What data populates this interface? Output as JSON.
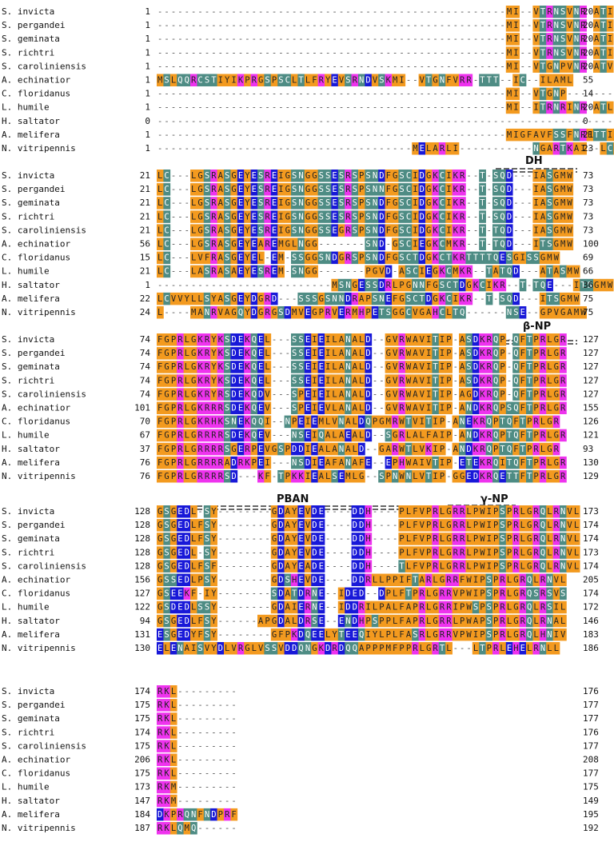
{
  "colors": {
    "orange": "#F39A1F",
    "teal": "#4E8C84",
    "magenta": "#EE33EE",
    "blue": "#1818D8",
    "text_on_dark": "#ffffff",
    "text_on_light": "#222222",
    "gap": "#555555"
  },
  "color_scheme": {
    "A": "orange",
    "G": "orange",
    "V": "orange",
    "L": "orange",
    "I": "orange",
    "M": "orange",
    "F": "orange",
    "W": "orange",
    "P": "orange",
    "Y": "orange",
    "S": "teal",
    "T": "teal",
    "C": "teal",
    "N": "teal",
    "Q": "teal",
    "K": "magenta",
    "R": "magenta",
    "H": "magenta",
    "D": "blue",
    "E": "blue"
  },
  "blocks": [
    {
      "rows": [
        {
          "species": "S. invicta",
          "start": "1",
          "seq": "----------------------------------------------------MI--VTRNSVNR-ATI--VC--IMAML",
          "end": "20"
        },
        {
          "species": "S. pergandei",
          "start": "1",
          "seq": "----------------------------------------------------MI--VTRNSVNR-ATI--VC--IMAML",
          "end": "20"
        },
        {
          "species": "S. geminata",
          "start": "1",
          "seq": "----------------------------------------------------MI--VTRNSVNR-ATI--VC--IMAML",
          "end": "20"
        },
        {
          "species": "S. richtri",
          "start": "1",
          "seq": "----------------------------------------------------MI--VTRNSVNR-ATI--VC--IMAML",
          "end": "20"
        },
        {
          "species": "S. caroliniensis",
          "start": "1",
          "seq": "----------------------------------------------------MI--VTGNPVNR-ATV--VC--IMALL",
          "end": "20"
        },
        {
          "species": "A. echinatior",
          "start": "1",
          "seq": "MSLQQRCSTIYIKPRGSPSCLTLFRYEVSRNDVSKMI--VTGNFVRR-TTT--IC--ILAML",
          "end": "55"
        },
        {
          "species": "C. floridanus",
          "start": "1",
          "seq": "----------------------------------------------------MI--VTGNP------------VC--AIALL",
          "end": "14"
        },
        {
          "species": "L. humile",
          "start": "1",
          "seq": "----------------------------------------------------MI--ITRNRINR-ATL--IC--VLASW",
          "end": "20"
        },
        {
          "species": "H. saltator",
          "start": "0",
          "seq": "--------------------------------------------------------------------------------",
          "end": "0"
        },
        {
          "species": "A. melifera",
          "start": "1",
          "seq": "----------------------------------------------------MIGFAVFSSFNRFTTIFVC--V-----L",
          "end": "21"
        },
        {
          "species": "N. vitripennis",
          "start": "1",
          "seq": "--------------------------------------MELARLI-----------NGARTKAI--LCALLVIV",
          "end": "23"
        }
      ]
    },
    {
      "region": {
        "label": "DH"
      },
      "rows": [
        {
          "species": "S. invicta",
          "start": "21",
          "seq": "LC---LGSRASGEYESREIGSNGGSSESRSPSNDFGSCIDGKCIKR--T-SQD---IASGMW",
          "end": "73"
        },
        {
          "species": "S. pergandei",
          "start": "21",
          "seq": "LC---LGSRASGEYESREIGSNGGSSESRSPSNNFGSCIDGKCIKR--T-SQD---IASGMW",
          "end": "73"
        },
        {
          "species": "S. geminata",
          "start": "21",
          "seq": "LC---LGSRASGEYESREIGSNGGSSESRSPSNDFGSCIDGKCIKR--T-SQD---IASGMW",
          "end": "73"
        },
        {
          "species": "S. richtri",
          "start": "21",
          "seq": "LC---LGSRASGEYESREIGSNGGSSESRSPSNDFGSCIDGKCIKR--T-SQD---IASGMW",
          "end": "73"
        },
        {
          "species": "S. caroliniensis",
          "start": "21",
          "seq": "LC---LGSRASGEYESREIGSNGGSSEGRSPSNDFGSCIDGKCIKR--T-TQD---IASGMW",
          "end": "73"
        },
        {
          "species": "A. echinatior",
          "start": "56",
          "seq": "LC---LGSRASGEYEAREMGLNGG-------SND-GSCIEGKCMKR--T-TQD---ITSGMW",
          "end": "100"
        },
        {
          "species": "C. floridanus",
          "start": "15",
          "seq": "LC---LVFRASGEYEL-EM-SSGGSNDGRSPSNDFGSCTDGKCTKRTTTTQESGISSGMW",
          "end": "69"
        },
        {
          "species": "L. humile",
          "start": "21",
          "seq": "LC---LASRASAEYESREM-SNGG-------PGVD-ASCIEGKCMKR--TATQD---ATASMW",
          "end": "66"
        },
        {
          "species": "H. saltator",
          "start": "1",
          "seq": "--------------------------MSNGESSDRLPGNNFGSCTDGKCIKR--T-TQE---ITSGMW",
          "end": "36"
        },
        {
          "species": "A. melifera",
          "start": "22",
          "seq": "LCVVYLLSYASGEYDGRD---SSSGSNNDRAPSNEFGSCTDGKCIKR--T-SQD---ITSGMW",
          "end": "75"
        },
        {
          "species": "N. vitripennis",
          "start": "24",
          "seq": "L----MANRVAGQYDGRGSDMVEGPRVERMHPETSGGCVGAHCLTQ------NSE--GPVGAMW",
          "end": "75"
        }
      ]
    },
    {
      "region": {
        "label": "β-NP"
      },
      "rows": [
        {
          "species": "S. invicta",
          "start": "74",
          "seq": "FGPRLGKRYKSDEKQEL---SSEIEILANALD--GVRWAVITIP-ASDKRQP-QFTPRLGR",
          "end": "127"
        },
        {
          "species": "S. pergandei",
          "start": "74",
          "seq": "FGPRLGKRYKSDEKQEL---SSEIEILANALD--GVRWAVITIP-ASDKRQP-QFTPRLGR",
          "end": "127"
        },
        {
          "species": "S. geminata",
          "start": "74",
          "seq": "FGPRLGKRYKSDEKQEL---SSEIEILANALD--GVRWAVITIP-ASDKRQP-QFTPRLGR",
          "end": "127"
        },
        {
          "species": "S. richtri",
          "start": "74",
          "seq": "FGPRLGKRYKSDEKQEL---SSEIEILANALD--GVRWAVITIP-ASDKRQP-QFTPRLGR",
          "end": "127"
        },
        {
          "species": "S. caroliniensis",
          "start": "74",
          "seq": "FGPRLGKRYRSDEKQDV---SPEIEILANALD--GVRWAVITIP-AGDKRQP-QFTPRLGR",
          "end": "127"
        },
        {
          "species": "A. echinatior",
          "start": "101",
          "seq": "FGPRLGKRRRSDEKQEV---SPEIEVLANALD--GVRWAVITIP-ANDKRQPSQFTPRLGR",
          "end": "155"
        },
        {
          "species": "C. floridanus",
          "start": "70",
          "seq": "FGPRLGKRHKSNEKQQI--NPEIEMLVNALDQPGMRWTVITIP-ANEKRQPTQFTPRLGR",
          "end": "126"
        },
        {
          "species": "L. humile",
          "start": "67",
          "seq": "FGPRLGRRRRSDEKQEV---NSEIQALAEALD--SGRLALFAIP-ANDKRQPTQFTPRLGR",
          "end": "121"
        },
        {
          "species": "H. saltator",
          "start": "37",
          "seq": "FGPRLGRRRRSGERPEVGSPDDIEALANALD--GARWTLVKIP-ANDKRQPTQFTPRLGR",
          "end": "93"
        },
        {
          "species": "A. melifera",
          "start": "76",
          "seq": "FGPRLGRRRRADRKPEI---NSDIEAFANAFE--EPHWAIVTIP-ETEKRQITQFTPRLGR",
          "end": "130"
        },
        {
          "species": "N. vitripennis",
          "start": "76",
          "seq": "FGPRLGRRRRSD---KF-TPKKIEALSEMLG--SPNWNLVTIP-GGEDKRQETTFTPRLGR",
          "end": "129"
        }
      ]
    },
    {
      "region": {
        "label_a": "PBAN",
        "label_b": "γ-NP"
      },
      "rows": [
        {
          "species": "S. invicta",
          "start": "128",
          "seq": "GSGEDL-SY--------GDAYEVDE----DDH----PLFVPRLGRRLPWIPSPRLGRQLRNVL",
          "end": "173"
        },
        {
          "species": "S. pergandei",
          "start": "128",
          "seq": "GSGEDLFSY--------GDAYEVDE----DDH----PLFVPRLGRRLPWIPSPRLGRQLRNVL",
          "end": "174"
        },
        {
          "species": "S. geminata",
          "start": "128",
          "seq": "GSGEDLFSY--------GDAYEVDE----DDH----PLFVPRLGRRLPWIPSPRLGRQLRNVL",
          "end": "174"
        },
        {
          "species": "S. richtri",
          "start": "128",
          "seq": "GSGEDL-SY--------GDAYEVDE----DDH----PLFVPRLGRRLPWIPSPRLGRQLRNVL",
          "end": "173"
        },
        {
          "species": "S. caroliniensis",
          "start": "128",
          "seq": "GSGEDLFSF--------GDAYEADE----DDH----TLFVPRLGRRLPWIPSPRLGRQLRNVL",
          "end": "174"
        },
        {
          "species": "A. echinatior",
          "start": "156",
          "seq": "GSSEDLPSY--------GDSHEVDE----DDRLLPPIFTARLGRRFWIPSPRLGRQLRNVL",
          "end": "205"
        },
        {
          "species": "C. floridanus",
          "start": "127",
          "seq": "GSEEKF-IY--------SDATDRNE--IDED--DPLFTPRLGRRVPWIPSPRLGRQSRSVS",
          "end": "174"
        },
        {
          "species": "L. humile",
          "start": "122",
          "seq": "GSDEDLSSY--------GDAIERNE--IDDRILPALFAPRLGRRIPWSPSPRLGRQLRSIL",
          "end": "172"
        },
        {
          "species": "H. saltator",
          "start": "94",
          "seq": "GSGEDLFSY------APGDALDRSE--ENDHPSPPLFAPRLGRRLPWAPSPRLGRQLRNAL",
          "end": "146"
        },
        {
          "species": "A. melifera",
          "start": "131",
          "seq": "ESGEDYFSY--------GFPKDQEELYTEEQIYLPLFASRLGRRVPWIPSPRLGRQLHNIV",
          "end": "183"
        },
        {
          "species": "N. vitripennis",
          "start": "130",
          "seq": "ELENAISVYDLVRGLVSSVDDQNGKDRDQQAPPPMFPPRLGRTL---LTPRLEHELRNLL",
          "end": "186"
        }
      ]
    },
    {
      "rows": [
        {
          "species": "S. invicta",
          "start": "174",
          "seq": "RKL---------",
          "end": "176"
        },
        {
          "species": "S. pergandei",
          "start": "175",
          "seq": "RKL---------",
          "end": "177"
        },
        {
          "species": "S. geminata",
          "start": "175",
          "seq": "RKL---------",
          "end": "177"
        },
        {
          "species": "S. richtri",
          "start": "174",
          "seq": "RKL---------",
          "end": "176"
        },
        {
          "species": "S. caroliniensis",
          "start": "175",
          "seq": "RKL---------",
          "end": "177"
        },
        {
          "species": "A. echinatior",
          "start": "206",
          "seq": "RKL---------",
          "end": "208"
        },
        {
          "species": "C. floridanus",
          "start": "175",
          "seq": "RKL---------",
          "end": "177"
        },
        {
          "species": "L. humile",
          "start": "173",
          "seq": "RKM---------",
          "end": "175"
        },
        {
          "species": "H. saltator",
          "start": "147",
          "seq": "RKM---------",
          "end": "149"
        },
        {
          "species": "A. melifera",
          "start": "184",
          "seq": "DKPRQNFNDPRF",
          "end": "195"
        },
        {
          "species": "N. vitripennis",
          "start": "187",
          "seq": "RKLQMQ------",
          "end": "192"
        }
      ]
    }
  ]
}
